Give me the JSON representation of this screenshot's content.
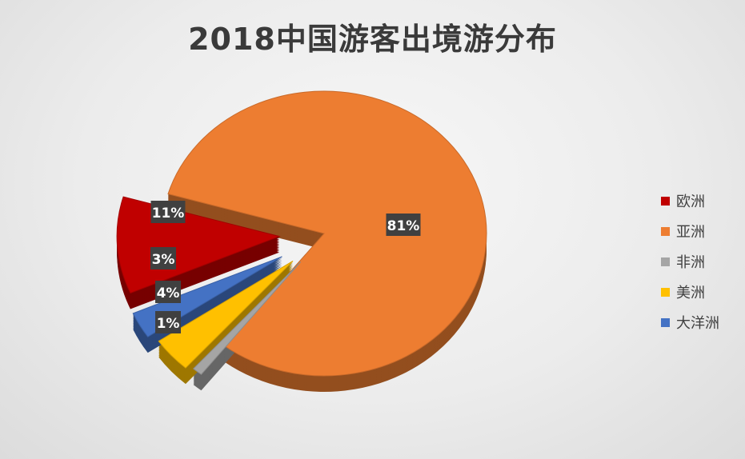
{
  "chart_data": {
    "type": "pie",
    "title": "2018中国游客出境游分布",
    "series": [
      {
        "name": "欧洲",
        "value": 11,
        "label": "11%",
        "color": "#C00000"
      },
      {
        "name": "亚洲",
        "value": 81,
        "label": "81%",
        "color": "#ED7D31"
      },
      {
        "name": "非洲",
        "value": 1,
        "label": "1%",
        "color": "#A5A5A5"
      },
      {
        "name": "美洲",
        "value": 4,
        "label": "4%",
        "color": "#FFC000"
      },
      {
        "name": "大洋洲",
        "value": 3,
        "label": "3%",
        "color": "#4472C4"
      }
    ],
    "legend_position": "right",
    "exploded_slices": [
      "欧洲",
      "非洲",
      "美洲",
      "大洋洲"
    ],
    "three_d": true
  }
}
